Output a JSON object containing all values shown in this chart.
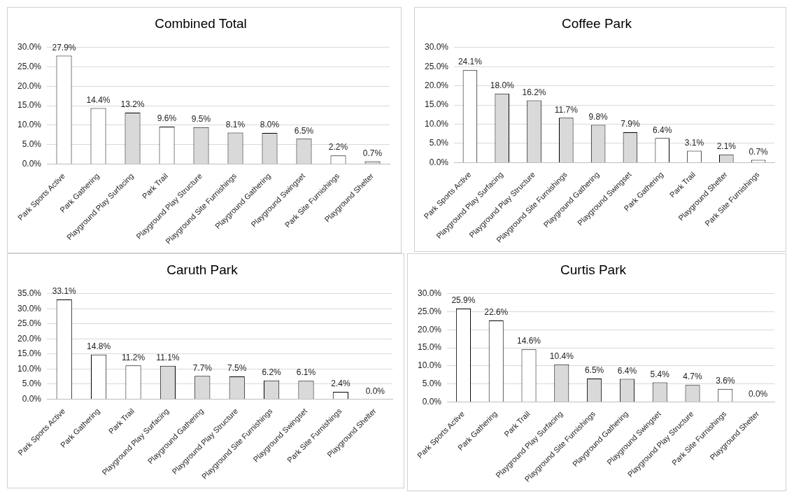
{
  "chart_data": [
    {
      "type": "bar",
      "title": "Combined Total",
      "categories": [
        "Park Sports Active",
        "Park Gathering",
        "Playground Play Surfacing",
        "Park Trail",
        "Playground Play Structure",
        "Playground Site Furnishings",
        "Playground Gathering",
        "Playground Swingset",
        "Park Site Furnishings",
        "Playground Shelter"
      ],
      "values": [
        27.9,
        14.4,
        13.2,
        9.6,
        9.5,
        8.1,
        8.0,
        6.5,
        2.2,
        0.7
      ],
      "value_labels": [
        "27.9%",
        "14.4%",
        "13.2%",
        "9.6%",
        "9.5%",
        "8.1%",
        "8.0%",
        "6.5%",
        "2.2%",
        "0.7%"
      ],
      "colors": [
        "#ffffff",
        "#ffffff",
        "#d9d9d9",
        "#ffffff",
        "#d9d9d9",
        "#d9d9d9",
        "#d9d9d9",
        "#d9d9d9",
        "#ffffff",
        "#d9d9d9"
      ],
      "ylim": [
        0,
        30
      ],
      "yticks": [
        {
          "value": 0,
          "label": "0.0%"
        },
        {
          "value": 5,
          "label": "5.0%"
        },
        {
          "value": 10,
          "label": "10.0%"
        },
        {
          "value": 15,
          "label": "15.0%"
        },
        {
          "value": 20,
          "label": "20.0%"
        },
        {
          "value": 25,
          "label": "25.0%"
        },
        {
          "value": 30,
          "label": "30.0%"
        }
      ],
      "grid": "y",
      "legend": false
    },
    {
      "type": "bar",
      "title": "Coffee Park",
      "categories": [
        "Park Sports Active",
        "Playground Play Surfacing",
        "Playground Play Structure",
        "Playground Site Furnishings",
        "Playground Gathering",
        "Playground Swingset",
        "Park Gathering",
        "Park Trail",
        "Playground Shelter",
        "Park Site Furnishings"
      ],
      "values": [
        24.1,
        18.0,
        16.2,
        11.7,
        9.8,
        7.9,
        6.4,
        3.1,
        2.1,
        0.7
      ],
      "value_labels": [
        "24.1%",
        "18.0%",
        "16.2%",
        "11.7%",
        "9.8%",
        "7.9%",
        "6.4%",
        "3.1%",
        "2.1%",
        "0.7%"
      ],
      "colors": [
        "#ffffff",
        "#d9d9d9",
        "#d9d9d9",
        "#d9d9d9",
        "#d9d9d9",
        "#d9d9d9",
        "#ffffff",
        "#ffffff",
        "#d9d9d9",
        "#ffffff"
      ],
      "ylim": [
        0,
        30
      ],
      "yticks": [
        {
          "value": 0,
          "label": "0.0%"
        },
        {
          "value": 5,
          "label": "5.0%"
        },
        {
          "value": 10,
          "label": "10.0%"
        },
        {
          "value": 15,
          "label": "15.0%"
        },
        {
          "value": 20,
          "label": "20.0%"
        },
        {
          "value": 25,
          "label": "25.0%"
        },
        {
          "value": 30,
          "label": "30.0%"
        }
      ],
      "grid": "y",
      "legend": false
    },
    {
      "type": "bar",
      "title": "Caruth Park",
      "categories": [
        "Park Sports Active",
        "Park Gathering",
        "Park Trail",
        "Playground Play Surfacing",
        "Playground Gathering",
        "Playground Play Structure",
        "Playground Site Furnishings",
        "Playground Swingset",
        "Park Site Furnishings",
        "Playground Shelter"
      ],
      "values": [
        33.1,
        14.8,
        11.2,
        11.1,
        7.7,
        7.5,
        6.2,
        6.1,
        2.4,
        0.0
      ],
      "value_labels": [
        "33.1%",
        "14.8%",
        "11.2%",
        "11.1%",
        "7.7%",
        "7.5%",
        "6.2%",
        "6.1%",
        "2.4%",
        "0.0%"
      ],
      "colors": [
        "#ffffff",
        "#ffffff",
        "#ffffff",
        "#d9d9d9",
        "#d9d9d9",
        "#d9d9d9",
        "#d9d9d9",
        "#d9d9d9",
        "#ffffff",
        "#d9d9d9"
      ],
      "ylim": [
        0,
        35
      ],
      "yticks": [
        {
          "value": 0,
          "label": "0.0%"
        },
        {
          "value": 5,
          "label": "5.0%"
        },
        {
          "value": 10,
          "label": "10.0%"
        },
        {
          "value": 15,
          "label": "15.0%"
        },
        {
          "value": 20,
          "label": "20.0%"
        },
        {
          "value": 25,
          "label": "25.0%"
        },
        {
          "value": 30,
          "label": "30.0%"
        },
        {
          "value": 35,
          "label": "35.0%"
        }
      ],
      "grid": "y",
      "legend": false
    },
    {
      "type": "bar",
      "title": "Curtis Park",
      "categories": [
        "Park Sports Active",
        "Park Gathering",
        "Park Trail",
        "Playground Play Surfacing",
        "Playground Site Furnishings",
        "Playground Gathering",
        "Playground Swingset",
        "Playground Play Structure",
        "Park Site Furnishings",
        "Playground Shelter"
      ],
      "values": [
        25.9,
        22.6,
        14.6,
        10.4,
        6.5,
        6.4,
        5.4,
        4.7,
        3.6,
        0.0
      ],
      "value_labels": [
        "25.9%",
        "22.6%",
        "14.6%",
        "10.4%",
        "6.5%",
        "6.4%",
        "5.4%",
        "4.7%",
        "3.6%",
        "0.0%"
      ],
      "colors": [
        "#ffffff",
        "#ffffff",
        "#ffffff",
        "#d9d9d9",
        "#d9d9d9",
        "#d9d9d9",
        "#d9d9d9",
        "#d9d9d9",
        "#ffffff",
        "#d9d9d9"
      ],
      "ylim": [
        0,
        30
      ],
      "yticks": [
        {
          "value": 0,
          "label": "0.0%"
        },
        {
          "value": 5,
          "label": "5.0%"
        },
        {
          "value": 10,
          "label": "10.0%"
        },
        {
          "value": 15,
          "label": "15.0%"
        },
        {
          "value": 20,
          "label": "20.0%"
        },
        {
          "value": 25,
          "label": "25.0%"
        },
        {
          "value": 30,
          "label": "30.0%"
        }
      ],
      "grid": "y",
      "legend": false
    }
  ]
}
